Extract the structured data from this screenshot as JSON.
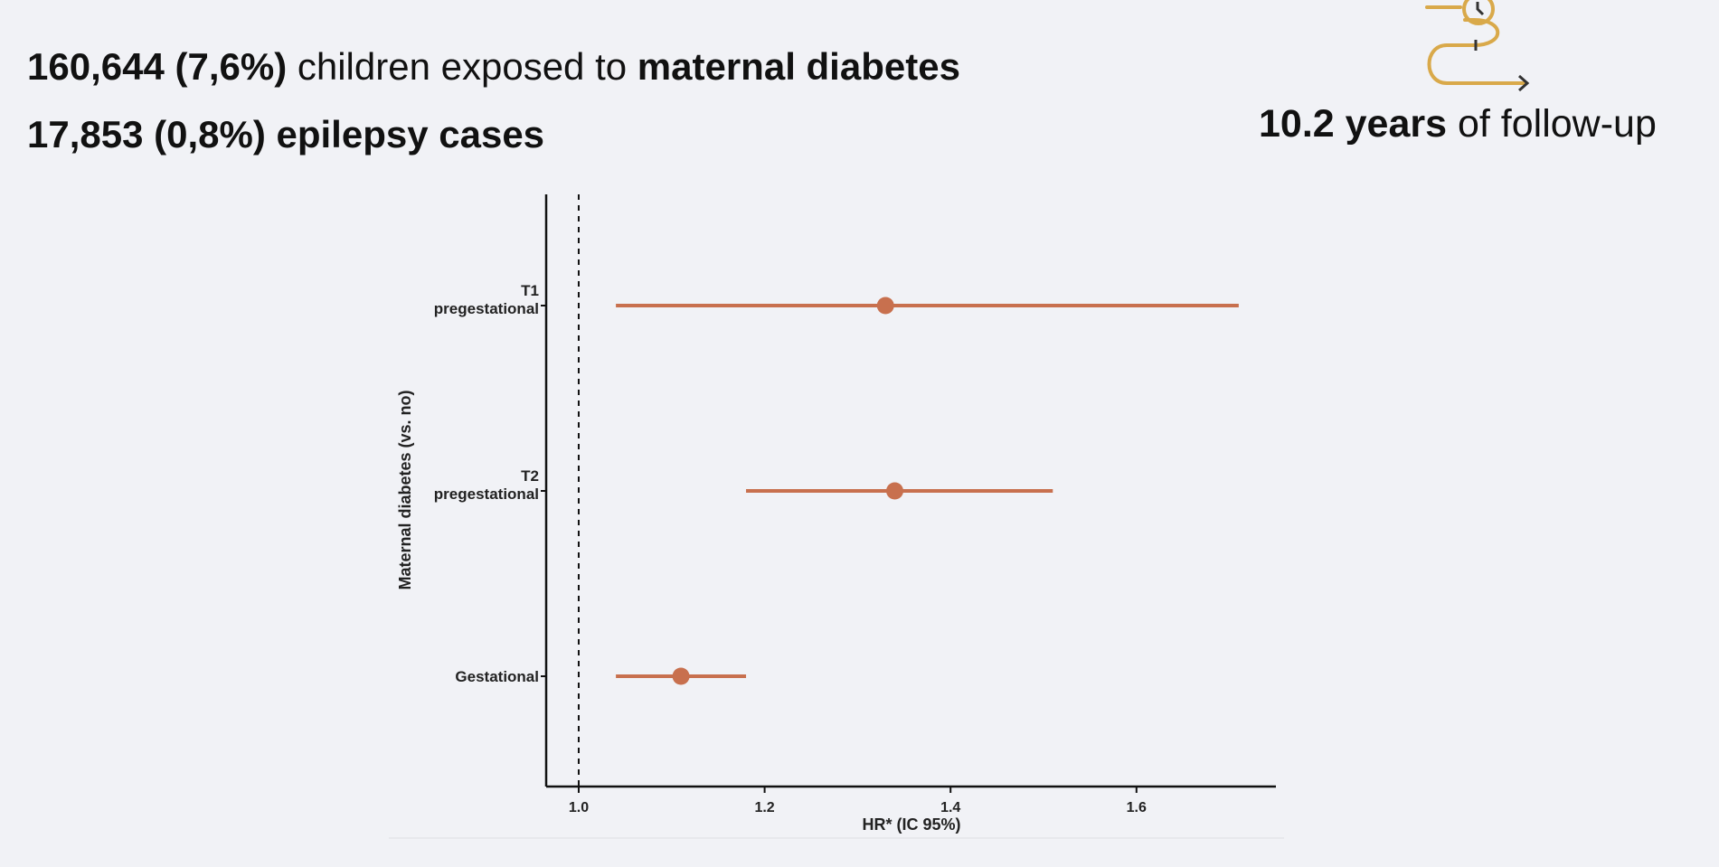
{
  "header": {
    "line1": {
      "count": "160,644 (7,6%)",
      "middle": " children exposed to ",
      "emph": "maternal diabetes"
    },
    "line2": {
      "text": "17,853 (0,8%) epilepsy cases"
    },
    "followup": {
      "value": "10.2 years",
      "rest": " of follow-up"
    },
    "icon": "timeline-clock-icon"
  },
  "colors": {
    "accent": "#c8704e",
    "icon": "#d9a94a",
    "background": "#f1f2f6"
  },
  "chart_data": {
    "type": "forest",
    "xlabel": "HR* (IC 95%)",
    "ylabel": "Maternal diabetes (vs. no)",
    "xlim": [
      0.965,
      1.75
    ],
    "xticks": [
      "1.0",
      "1.2",
      "1.4",
      "1.6"
    ],
    "reference_line": 1.0,
    "categories": [
      {
        "label_lines": [
          "T1",
          "pregestational"
        ],
        "hr": 1.33,
        "lower": 1.04,
        "upper": 1.71
      },
      {
        "label_lines": [
          "T2",
          "pregestational"
        ],
        "hr": 1.34,
        "lower": 1.18,
        "upper": 1.51
      },
      {
        "label_lines": [
          "Gestational"
        ],
        "hr": 1.11,
        "lower": 1.04,
        "upper": 1.18
      }
    ]
  }
}
